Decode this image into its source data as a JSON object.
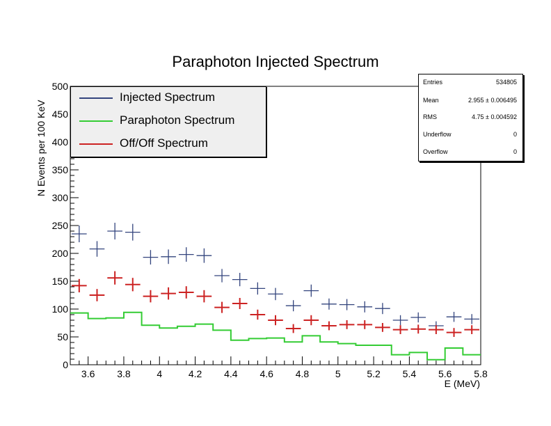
{
  "chart_data": {
    "type": "histogram",
    "title": "Paraphoton Injected Spectrum",
    "xlabel": "E (MeV)",
    "ylabel": "N Events per 100 KeV",
    "xlim": [
      3.5,
      5.8
    ],
    "ylim": [
      0,
      500
    ],
    "x_tick_labels": [
      "3.6",
      "3.8",
      "4",
      "4.2",
      "4.4",
      "4.6",
      "4.8",
      "5",
      "5.2",
      "5.4",
      "5.6",
      "5.8"
    ],
    "y_tick_labels": [
      "0",
      "50",
      "100",
      "150",
      "200",
      "250",
      "300",
      "350",
      "400",
      "450",
      "500"
    ],
    "bin_edges": [
      3.5,
      3.6,
      3.7,
      3.8,
      3.9,
      4.0,
      4.1,
      4.2,
      4.3,
      4.4,
      4.5,
      4.6,
      4.7,
      4.8,
      4.9,
      5.0,
      5.1,
      5.2,
      5.3,
      5.4,
      5.5,
      5.6,
      5.7,
      5.8
    ],
    "series": [
      {
        "name": "Injected Spectrum",
        "color": "#33447d",
        "style": "error-cross",
        "values": [
          235,
          208,
          240,
          238,
          193,
          194,
          198,
          196,
          160,
          153,
          137,
          127,
          106,
          133,
          109,
          108,
          104,
          101,
          80,
          85,
          70,
          86,
          82
        ],
        "errors": [
          15,
          14,
          15,
          15,
          13,
          13,
          13,
          13,
          12,
          12,
          11,
          11,
          10,
          11,
          10,
          10,
          10,
          10,
          9,
          9,
          8,
          9,
          9
        ]
      },
      {
        "name": "Paraphoton Spectrum",
        "color": "#33cc33",
        "style": "step",
        "values": [
          93,
          83,
          84,
          94,
          71,
          66,
          69,
          73,
          62,
          44,
          47,
          48,
          41,
          52,
          41,
          38,
          35,
          35,
          18,
          22,
          9,
          30,
          18
        ]
      },
      {
        "name": "Off/Off Spectrum",
        "color": "#cc2222",
        "style": "error-cross",
        "values": [
          142,
          125,
          156,
          144,
          123,
          128,
          130,
          123,
          103,
          110,
          90,
          80,
          65,
          80,
          70,
          72,
          72,
          67,
          63,
          64,
          63,
          58,
          63
        ],
        "errors": [
          12,
          11,
          12,
          12,
          11,
          11,
          11,
          11,
          10,
          10,
          9,
          9,
          8,
          9,
          8,
          8,
          8,
          8,
          8,
          8,
          8,
          8,
          8
        ]
      }
    ],
    "legend": {
      "placement": "top-left",
      "entries": [
        "Injected Spectrum",
        "Paraphoton Spectrum",
        "Off/Off Spectrum"
      ]
    },
    "stats": [
      {
        "key": "Entries",
        "value": "534805"
      },
      {
        "key": "Mean",
        "value": "2.955 ± 0.006495"
      },
      {
        "key": "RMS",
        "value": "4.75 ± 0.004592"
      },
      {
        "key": "Underflow",
        "value": "0"
      },
      {
        "key": "Overflow",
        "value": "0"
      }
    ]
  }
}
